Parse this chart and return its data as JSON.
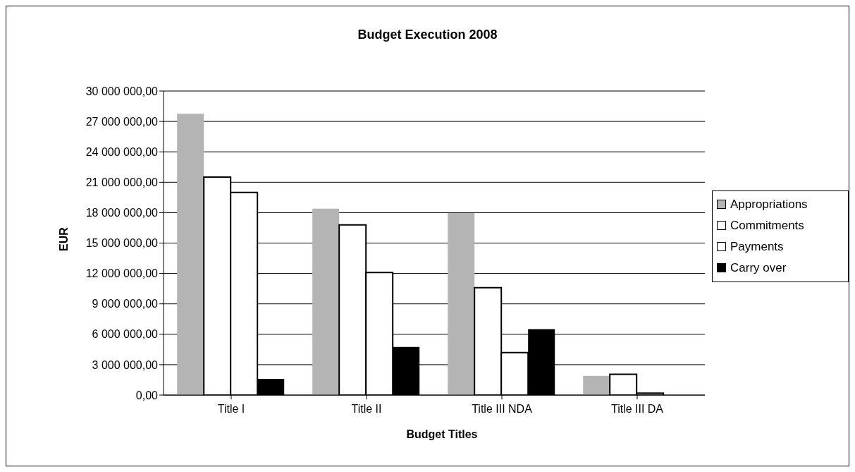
{
  "chart_data": {
    "type": "bar",
    "title": "Budget Execution 2008",
    "xlabel": "Budget Titles",
    "ylabel": "EUR",
    "categories": [
      "Title I",
      "Title II",
      "Title III NDA",
      "Title III DA"
    ],
    "series": [
      {
        "name": "Appropriations",
        "color": "#b4b4b4",
        "values": [
          27750000,
          18400000,
          17950000,
          1900000
        ]
      },
      {
        "name": "Commitments",
        "color": "#ffffff",
        "values": [
          21500000,
          16800000,
          10600000,
          2050000
        ]
      },
      {
        "name": "Payments",
        "color": "#ffffff",
        "values": [
          20000000,
          12100000,
          4200000,
          200000
        ]
      },
      {
        "name": "Carry over",
        "color": "#000000",
        "values": [
          1600000,
          4750000,
          6500000,
          0
        ]
      }
    ],
    "ylim": [
      0,
      30000000
    ],
    "yticks": [
      {
        "value": 0,
        "label": "0,00"
      },
      {
        "value": 3000000,
        "label": "3 000 000,00"
      },
      {
        "value": 6000000,
        "label": "6 000 000,00"
      },
      {
        "value": 9000000,
        "label": "9 000 000,00"
      },
      {
        "value": 12000000,
        "label": "12 000 000,00"
      },
      {
        "value": 15000000,
        "label": "15 000 000,00"
      },
      {
        "value": 18000000,
        "label": "18 000 000,00"
      },
      {
        "value": 21000000,
        "label": "21 000 000,00"
      },
      {
        "value": 24000000,
        "label": "24 000 000,00"
      },
      {
        "value": 27000000,
        "label": "27 000 000,00"
      },
      {
        "value": 30000000,
        "label": "30 000 000,00"
      }
    ],
    "grid": "y",
    "legend": "right"
  }
}
